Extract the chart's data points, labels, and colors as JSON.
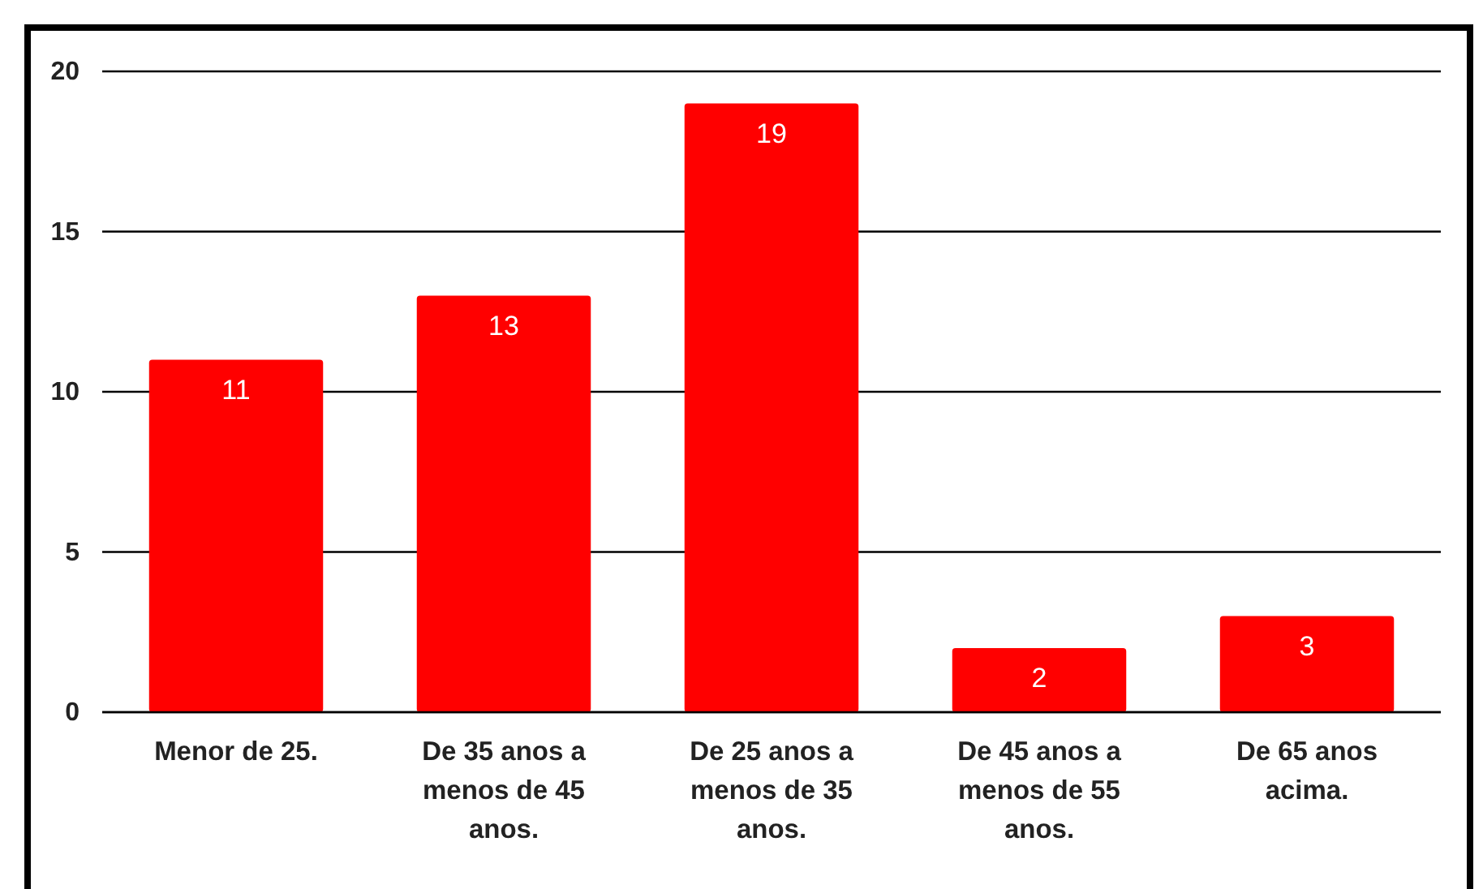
{
  "chart_data": {
    "type": "bar",
    "categories": [
      "Menor de 25.",
      "De 35 anos a menos de 45 anos.",
      "De 25 anos a menos de 35 anos.",
      "De 45 anos a menos de 55 anos.",
      "De 65 anos acima."
    ],
    "values": [
      11,
      13,
      19,
      2,
      3
    ],
    "color": "#ff0000",
    "ylim": [
      0,
      20
    ],
    "yticks": [
      0,
      5,
      10,
      15,
      20
    ],
    "grid": "y",
    "data_labels": true
  }
}
